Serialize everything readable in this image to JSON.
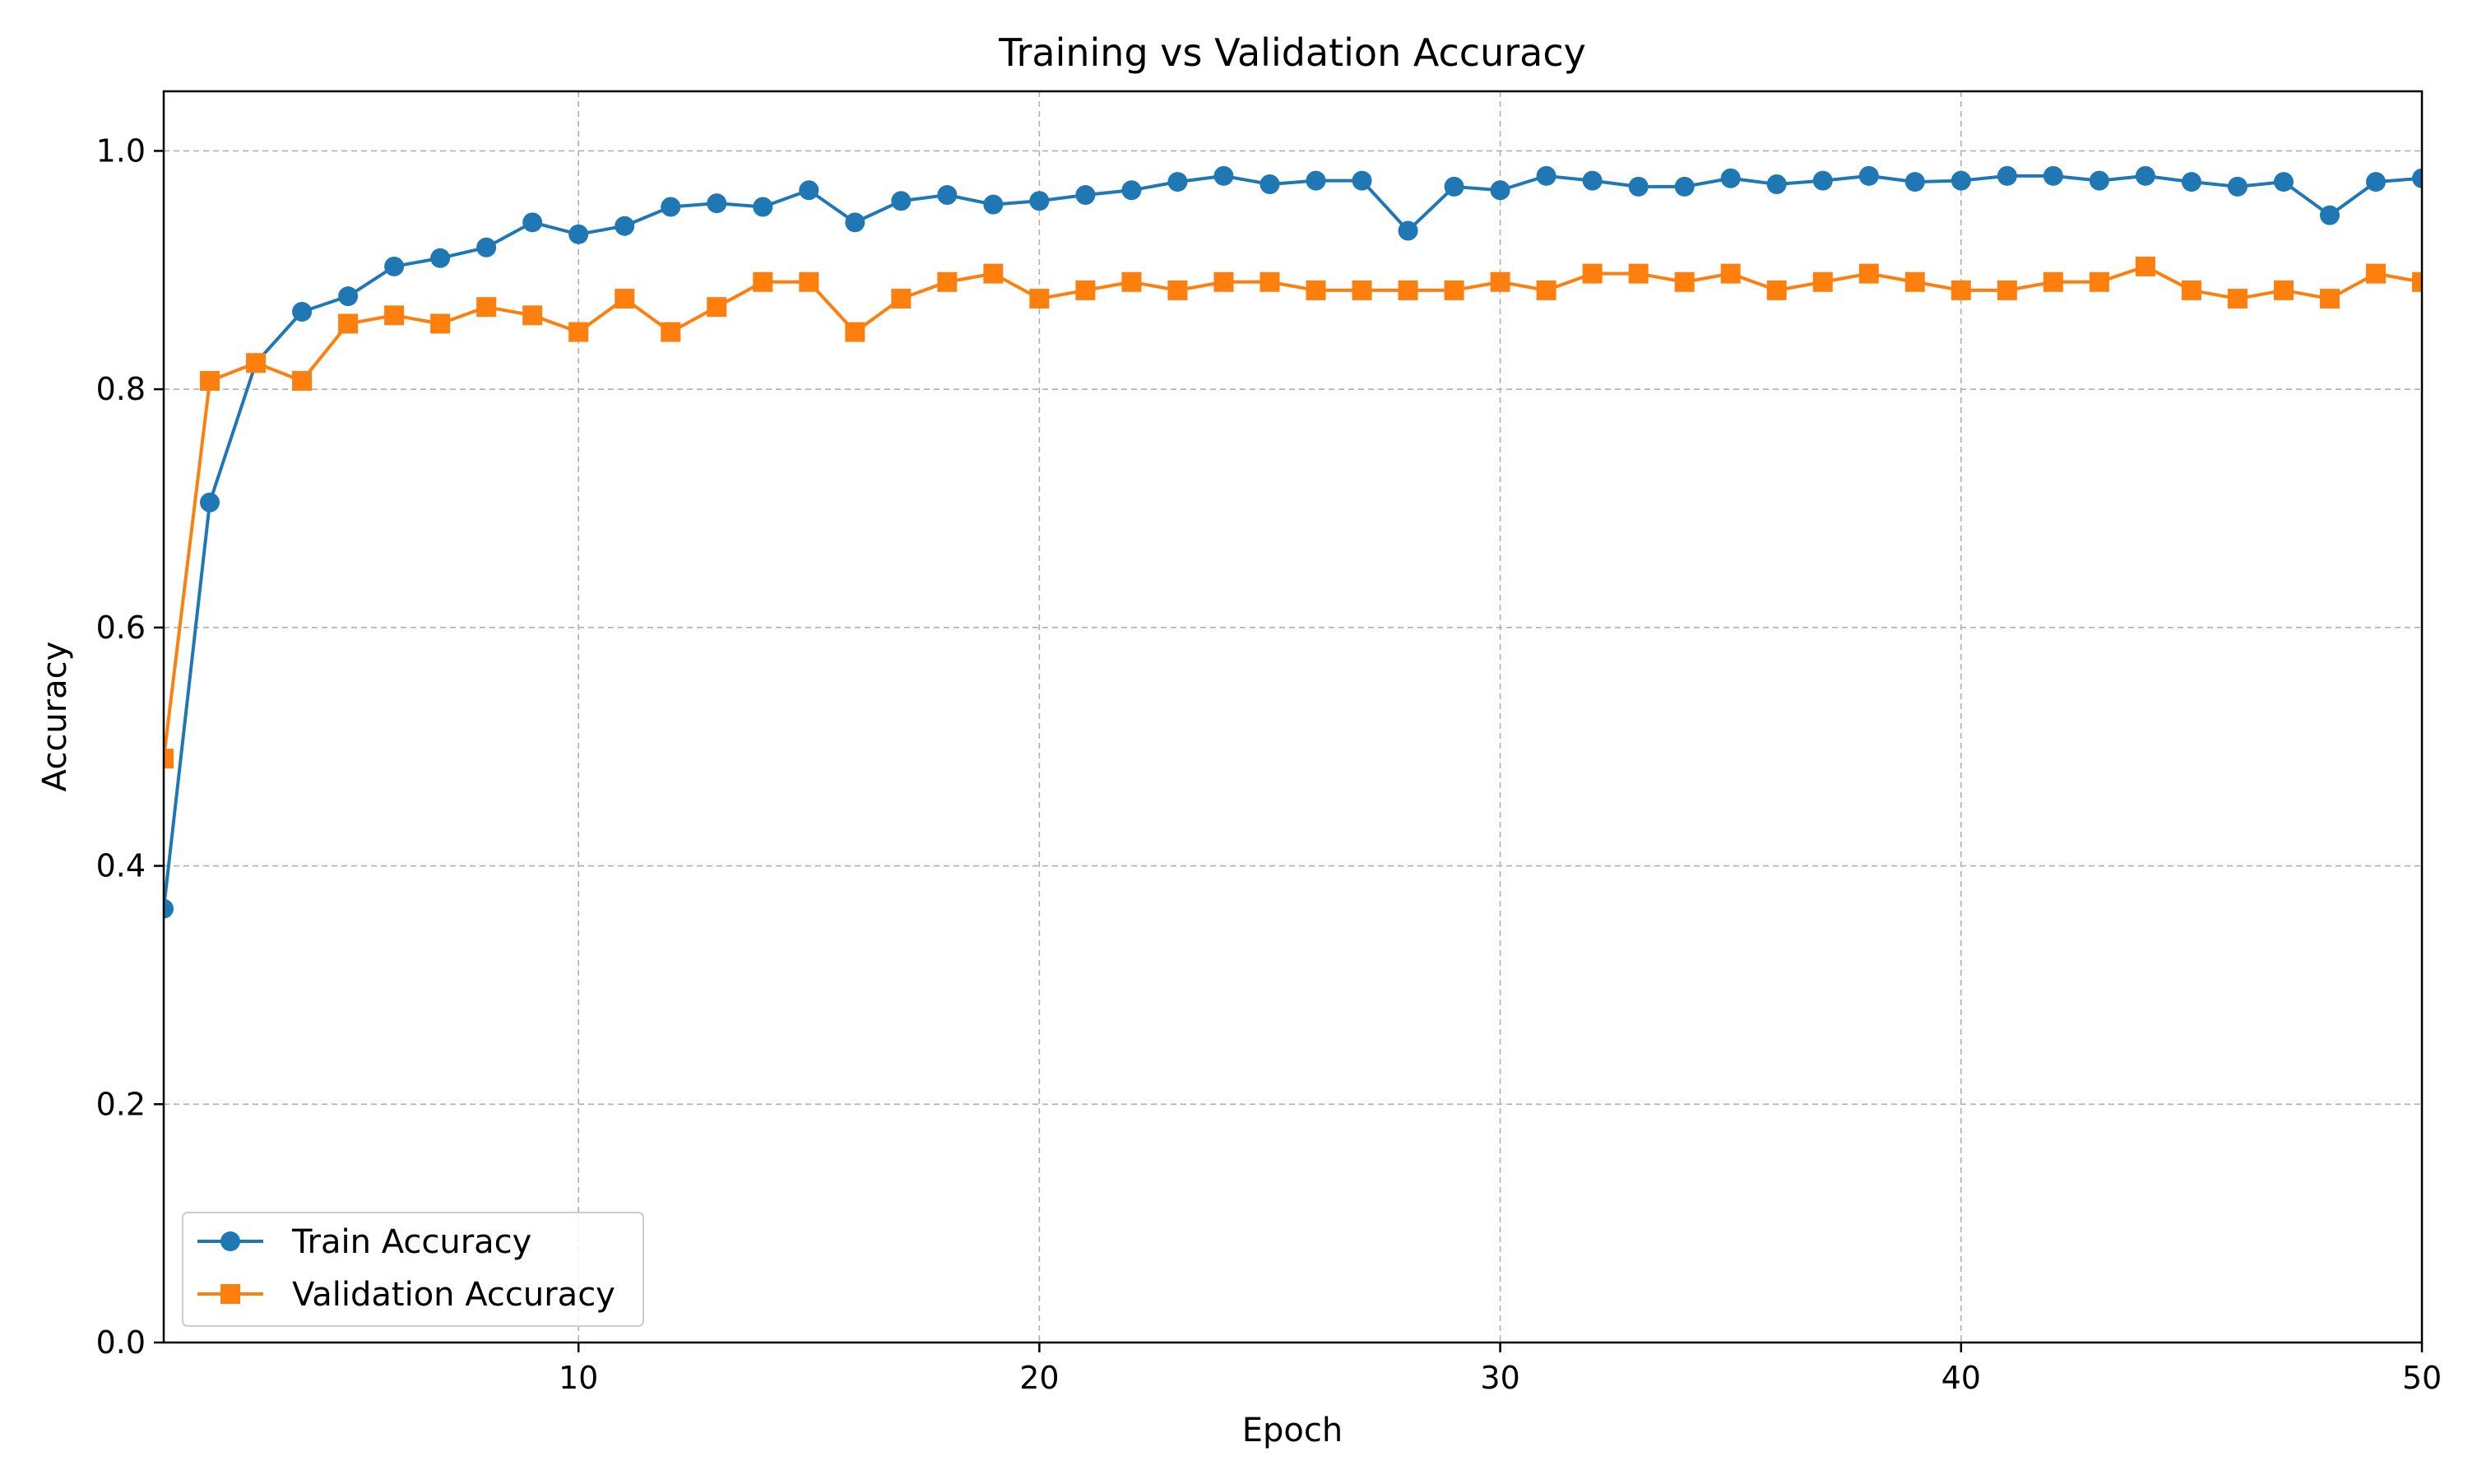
{
  "chart_data": {
    "type": "line",
    "title": "Training vs Validation Accuracy",
    "xlabel": "Epoch",
    "ylabel": "Accuracy",
    "xlim": [
      1,
      50
    ],
    "ylim": [
      0.0,
      1.05
    ],
    "x_ticks": [
      10,
      20,
      30,
      40,
      50
    ],
    "x_tick_labels": [
      "10",
      "20",
      "30",
      "40",
      "50"
    ],
    "y_ticks": [
      0.0,
      0.2,
      0.4,
      0.6,
      0.8,
      1.0
    ],
    "y_tick_labels": [
      "0.0",
      "0.2",
      "0.4",
      "0.6",
      "0.8",
      "1.0"
    ],
    "grid": true,
    "legend_position": "lower-left",
    "x": [
      1,
      2,
      3,
      4,
      5,
      6,
      7,
      8,
      9,
      10,
      11,
      12,
      13,
      14,
      15,
      16,
      17,
      18,
      19,
      20,
      21,
      22,
      23,
      24,
      25,
      26,
      27,
      28,
      29,
      30,
      31,
      32,
      33,
      34,
      35,
      36,
      37,
      38,
      39,
      40,
      41,
      42,
      43,
      44,
      45,
      46,
      47,
      48,
      49,
      50
    ],
    "series": [
      {
        "name": "Train Accuracy",
        "color": "#1f77b4",
        "marker": "circle",
        "values": [
          0.364,
          0.705,
          0.822,
          0.865,
          0.878,
          0.903,
          0.91,
          0.919,
          0.94,
          0.93,
          0.937,
          0.953,
          0.956,
          0.953,
          0.967,
          0.94,
          0.958,
          0.963,
          0.955,
          0.958,
          0.963,
          0.967,
          0.974,
          0.979,
          0.972,
          0.975,
          0.975,
          0.933,
          0.97,
          0.967,
          0.979,
          0.975,
          0.97,
          0.97,
          0.977,
          0.972,
          0.975,
          0.979,
          0.974,
          0.975,
          0.979,
          0.979,
          0.975,
          0.979,
          0.974,
          0.97,
          0.974,
          0.946,
          0.974,
          0.977
        ]
      },
      {
        "name": "Validation Accuracy",
        "color": "#ff7f0e",
        "marker": "square",
        "values": [
          0.49,
          0.807,
          0.822,
          0.807,
          0.855,
          0.862,
          0.855,
          0.869,
          0.862,
          0.848,
          0.876,
          0.848,
          0.869,
          0.89,
          0.89,
          0.848,
          0.876,
          0.89,
          0.897,
          0.876,
          0.883,
          0.89,
          0.883,
          0.89,
          0.89,
          0.883,
          0.883,
          0.883,
          0.883,
          0.89,
          0.883,
          0.897,
          0.897,
          0.89,
          0.897,
          0.883,
          0.89,
          0.897,
          0.89,
          0.883,
          0.883,
          0.89,
          0.89,
          0.903,
          0.883,
          0.876,
          0.883,
          0.876,
          0.897,
          0.89
        ]
      }
    ]
  }
}
